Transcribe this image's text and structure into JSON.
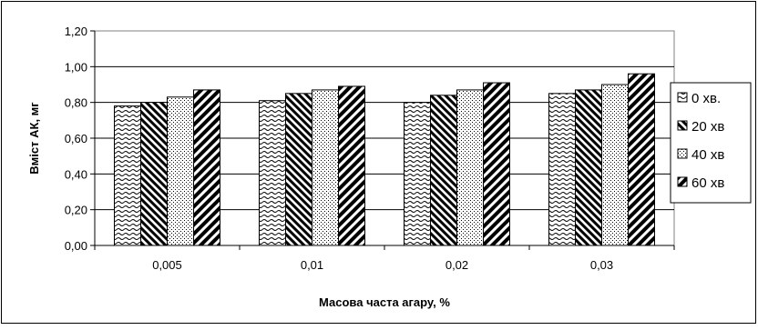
{
  "chart_data": {
    "type": "bar",
    "title": "",
    "xlabel": "Масова часта агару, %",
    "ylabel": "Вміст АК, мг",
    "categories": [
      "0,005",
      "0,01",
      "0,02",
      "0,03"
    ],
    "ylim": [
      0,
      1.2
    ],
    "yticks": [
      "0,00",
      "0,20",
      "0,40",
      "0,60",
      "0,80",
      "1,00",
      "1,20"
    ],
    "grid": true,
    "legend_position": "right",
    "series": [
      {
        "name": "0 хв.",
        "values": [
          0.78,
          0.81,
          0.8,
          0.85
        ],
        "pattern": "wave"
      },
      {
        "name": "20 хв",
        "values": [
          0.8,
          0.85,
          0.84,
          0.87
        ],
        "pattern": "diag-thin"
      },
      {
        "name": "40 хв",
        "values": [
          0.83,
          0.87,
          0.87,
          0.9
        ],
        "pattern": "dots"
      },
      {
        "name": "60 хв",
        "values": [
          0.87,
          0.89,
          0.91,
          0.96
        ],
        "pattern": "diag-thick"
      }
    ],
    "colors": {
      "bar_stroke": "#000000",
      "grid": "#000000",
      "background": "#ffffff"
    }
  }
}
